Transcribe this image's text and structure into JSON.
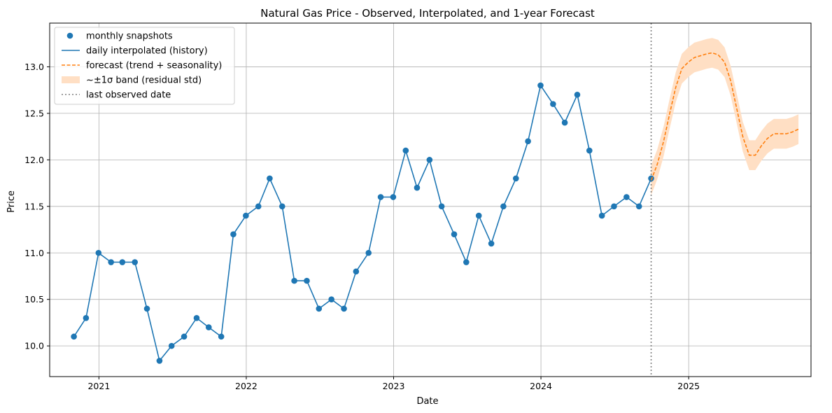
{
  "chart_data": {
    "type": "line",
    "title": "Natural Gas Price - Observed, Interpolated, and 1-year Forecast",
    "xlabel": "Date",
    "ylabel": "Price",
    "xlim": [
      "2020-09-01",
      "2025-10-31"
    ],
    "ylim": [
      9.67,
      13.47
    ],
    "x_ticks": [
      "2021",
      "2022",
      "2023",
      "2024",
      "2025"
    ],
    "y_ticks": [
      "10.0",
      "10.5",
      "11.0",
      "11.5",
      "12.0",
      "12.5",
      "13.0"
    ],
    "grid": true,
    "legend_position": "top-left",
    "colors": {
      "history": "#1f77b4",
      "forecast": "#ff7f0e",
      "band": "#ffdfc4",
      "vline": "#808080"
    },
    "legend": [
      {
        "label": "monthly snapshots",
        "kind": "marker"
      },
      {
        "label": "daily interpolated (history)",
        "kind": "line"
      },
      {
        "label": "forecast (trend + seasonality)",
        "kind": "dashed"
      },
      {
        "label": "~±1σ band (residual std)",
        "kind": "band"
      },
      {
        "label": "last observed date",
        "kind": "dotted"
      }
    ],
    "series": [
      {
        "name": "monthly snapshots",
        "x": [
          "2020-10-31",
          "2020-11-30",
          "2020-12-31",
          "2021-01-31",
          "2021-02-28",
          "2021-03-31",
          "2021-04-30",
          "2021-05-31",
          "2021-06-30",
          "2021-07-31",
          "2021-08-31",
          "2021-09-30",
          "2021-10-31",
          "2021-11-30",
          "2021-12-31",
          "2022-01-31",
          "2022-02-28",
          "2022-03-31",
          "2022-04-30",
          "2022-05-31",
          "2022-06-30",
          "2022-07-31",
          "2022-08-31",
          "2022-09-30",
          "2022-10-31",
          "2022-11-30",
          "2022-12-31",
          "2023-01-31",
          "2023-02-28",
          "2023-03-31",
          "2023-04-30",
          "2023-05-31",
          "2023-06-30",
          "2023-07-31",
          "2023-08-31",
          "2023-09-30",
          "2023-10-31",
          "2023-11-30",
          "2023-12-31",
          "2024-01-31",
          "2024-02-29",
          "2024-03-31",
          "2024-04-30",
          "2024-05-31",
          "2024-06-30",
          "2024-07-31",
          "2024-08-31",
          "2024-09-30"
        ],
        "y": [
          10.1,
          10.3,
          11.0,
          10.9,
          10.9,
          10.9,
          10.4,
          9.84,
          10.0,
          10.1,
          10.3,
          10.2,
          10.1,
          11.2,
          11.4,
          11.5,
          11.8,
          11.5,
          10.7,
          10.7,
          10.4,
          10.5,
          10.4,
          10.8,
          11.0,
          11.6,
          11.6,
          12.1,
          11.7,
          12.0,
          11.5,
          11.2,
          10.9,
          11.4,
          11.1,
          11.5,
          11.8,
          12.2,
          12.8,
          12.6,
          12.4,
          12.7,
          12.1,
          11.4,
          11.5,
          11.6,
          11.5,
          11.8
        ]
      },
      {
        "name": "forecast (trend + seasonality)",
        "x": [
          "2024-09-30",
          "2024-10-15",
          "2024-10-31",
          "2024-11-15",
          "2024-11-30",
          "2024-12-15",
          "2024-12-31",
          "2025-01-15",
          "2025-01-31",
          "2025-02-15",
          "2025-02-28",
          "2025-03-15",
          "2025-03-31",
          "2025-04-15",
          "2025-04-30",
          "2025-05-15",
          "2025-05-31",
          "2025-06-15",
          "2025-06-30",
          "2025-07-15",
          "2025-07-31",
          "2025-08-15",
          "2025-08-31",
          "2025-09-15",
          "2025-09-30"
        ],
        "y": [
          11.78,
          11.95,
          12.2,
          12.5,
          12.78,
          12.98,
          13.05,
          13.1,
          13.12,
          13.14,
          13.15,
          13.13,
          13.05,
          12.85,
          12.55,
          12.25,
          12.05,
          12.05,
          12.15,
          12.23,
          12.28,
          12.28,
          12.28,
          12.3,
          12.33
        ]
      }
    ],
    "band_halfwidth": 0.16,
    "last_observed_date": "2024-09-30"
  }
}
